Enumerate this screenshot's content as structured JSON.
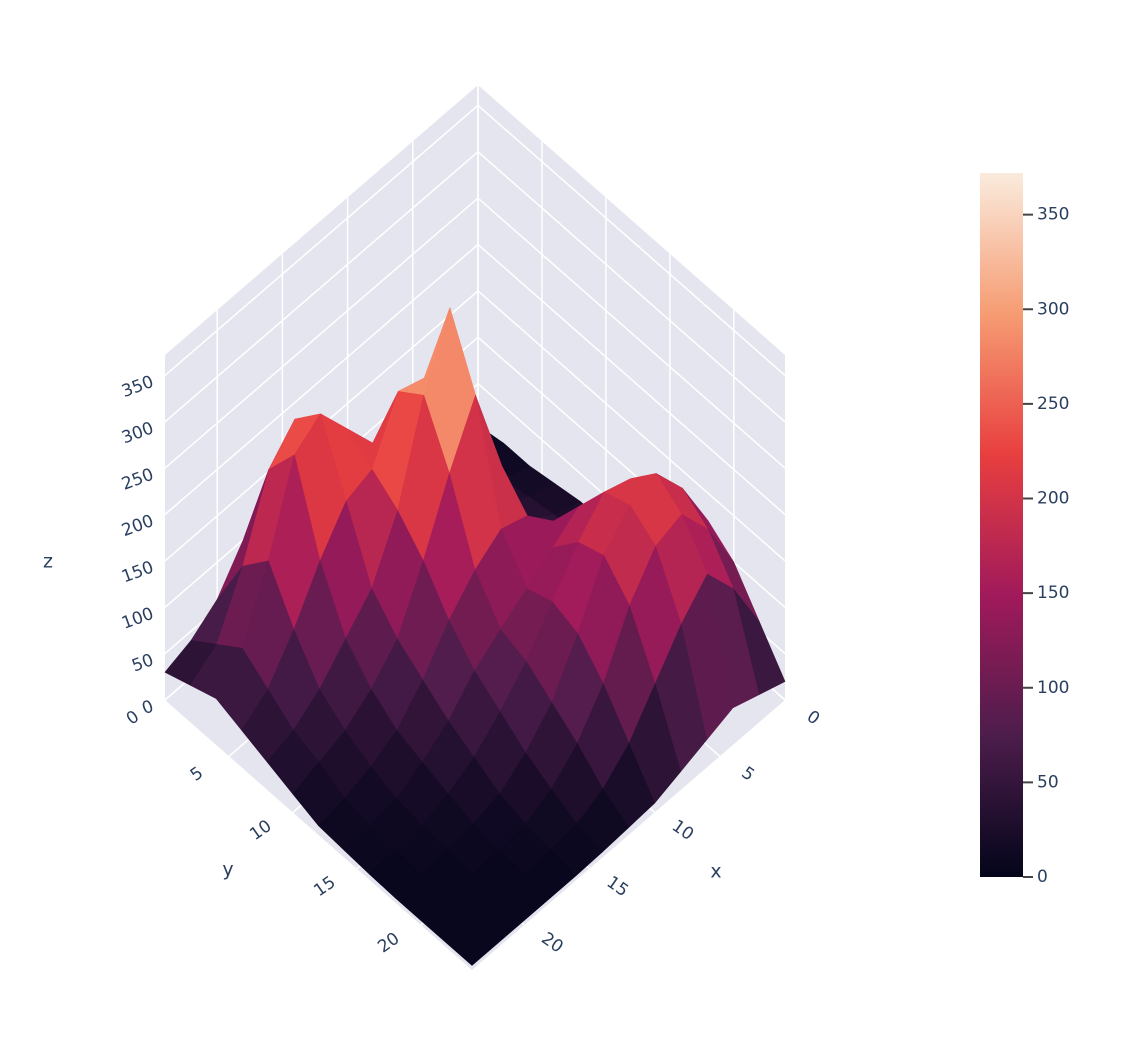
{
  "chart_data": {
    "type": "surface",
    "x": [
      0,
      2,
      4,
      6,
      8,
      10,
      12,
      14,
      16,
      18,
      20,
      22,
      24
    ],
    "y": [
      0,
      2,
      4,
      6,
      8,
      10,
      12,
      14,
      16,
      18,
      20,
      22,
      24
    ],
    "z": [
      [
        5,
        10,
        15,
        20,
        30,
        40,
        60,
        90,
        120,
        100,
        60,
        40,
        30
      ],
      [
        10,
        15,
        20,
        30,
        50,
        80,
        120,
        180,
        230,
        200,
        120,
        60,
        40
      ],
      [
        10,
        20,
        30,
        50,
        90,
        130,
        180,
        220,
        260,
        240,
        150,
        80,
        50
      ],
      [
        15,
        25,
        40,
        70,
        150,
        250,
        260,
        200,
        190,
        150,
        100,
        60,
        40
      ],
      [
        20,
        30,
        50,
        90,
        200,
        350,
        280,
        180,
        120,
        90,
        60,
        40,
        30
      ],
      [
        20,
        30,
        60,
        100,
        180,
        280,
        220,
        150,
        90,
        60,
        40,
        30,
        20
      ],
      [
        30,
        50,
        80,
        120,
        150,
        160,
        140,
        110,
        70,
        40,
        25,
        15,
        10
      ],
      [
        60,
        90,
        140,
        160,
        140,
        120,
        100,
        80,
        50,
        30,
        15,
        10,
        8
      ],
      [
        90,
        150,
        190,
        200,
        170,
        130,
        90,
        60,
        35,
        20,
        10,
        8,
        6
      ],
      [
        120,
        180,
        220,
        210,
        180,
        120,
        70,
        40,
        20,
        12,
        8,
        6,
        5
      ],
      [
        100,
        160,
        200,
        190,
        150,
        90,
        50,
        25,
        12,
        8,
        6,
        5,
        5
      ],
      [
        60,
        120,
        160,
        130,
        90,
        50,
        25,
        12,
        8,
        6,
        5,
        5,
        5
      ],
      [
        20,
        30,
        40,
        30,
        20,
        10,
        8,
        6,
        5,
        5,
        5,
        5,
        5
      ]
    ],
    "xlim": [
      0,
      24
    ],
    "ylim": [
      0,
      24
    ],
    "zlim": [
      0,
      372
    ],
    "xticks": [
      0,
      5,
      10,
      15,
      20
    ],
    "yticks": [
      0,
      5,
      10,
      15,
      20
    ],
    "zticks": [
      0,
      50,
      100,
      150,
      200,
      250,
      300,
      350
    ],
    "xlabel": "x",
    "ylabel": "y",
    "zlabel": "z",
    "grid": true,
    "colorscale": [
      [
        0,
        "#03051A"
      ],
      [
        0.2,
        "#4C1D4B"
      ],
      [
        0.4,
        "#A11A5B"
      ],
      [
        0.6,
        "#E83F3F"
      ],
      [
        0.8,
        "#F69C73"
      ],
      [
        1,
        "#FAEBDD"
      ]
    ],
    "colorbar": {
      "range": [
        0,
        372
      ],
      "ticks": [
        0,
        50,
        100,
        150,
        200,
        250,
        300,
        350
      ]
    }
  }
}
